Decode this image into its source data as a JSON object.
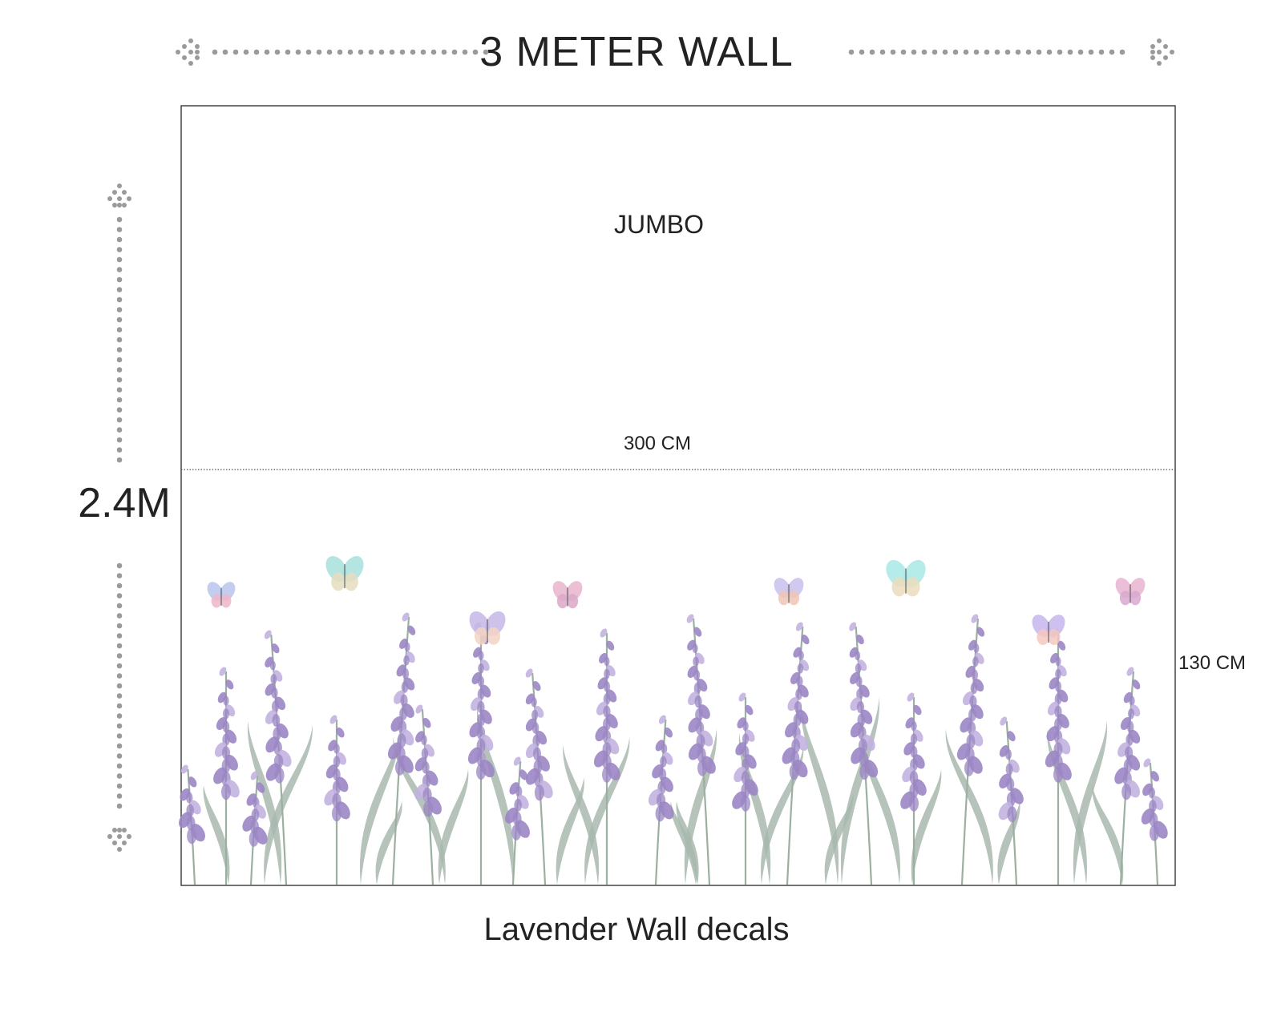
{
  "header": {
    "title": "3 METER WALL"
  },
  "wall": {
    "size_label": "JUMBO",
    "decal_width_label": "300 CM",
    "decal_height_label": "130 CM",
    "wall_height_label": "2.4M"
  },
  "footer": {
    "caption": "Lavender Wall decals"
  },
  "colors": {
    "text": "#222222",
    "dots": "#9a9a9a",
    "frame": "#555555",
    "lavender": "#9b86c4",
    "lavender_light": "#c2b3e0",
    "stem": "#9bb0a0",
    "leaf": "#a8b8ae"
  },
  "icons": [
    "dotted-arrow-left",
    "dotted-arrow-right",
    "dotted-arrow-up",
    "dotted-arrow-down",
    "butterfly-icon"
  ]
}
